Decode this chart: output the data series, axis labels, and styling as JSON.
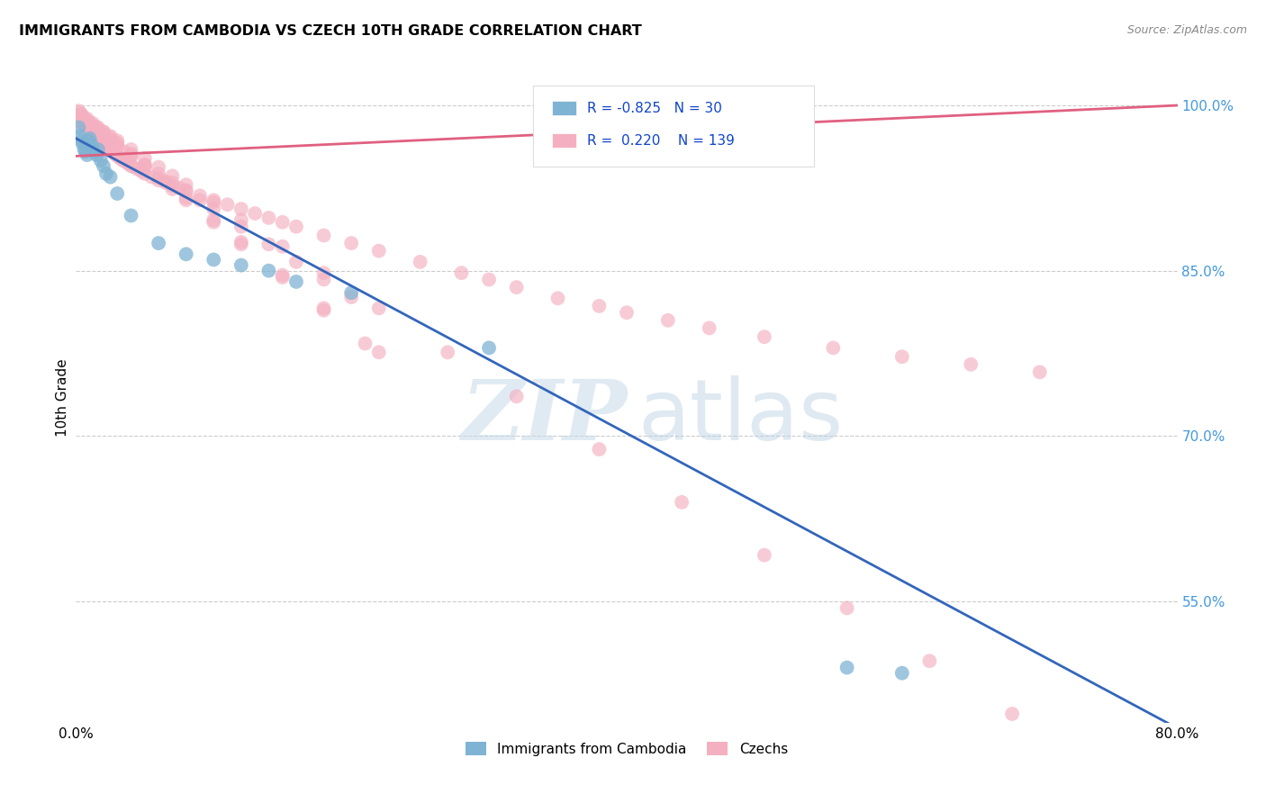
{
  "title": "IMMIGRANTS FROM CAMBODIA VS CZECH 10TH GRADE CORRELATION CHART",
  "source": "Source: ZipAtlas.com",
  "ylabel": "10th Grade",
  "y_ticks": [
    0.55,
    0.7,
    0.85,
    1.0
  ],
  "y_tick_labels": [
    "55.0%",
    "70.0%",
    "85.0%",
    "100.0%"
  ],
  "x_tick_pos": [
    0.0,
    0.2,
    0.4,
    0.6,
    0.8
  ],
  "x_tick_labels": [
    "0.0%",
    "",
    "",
    "",
    "80.0%"
  ],
  "xlim": [
    0.0,
    0.8
  ],
  "ylim": [
    0.44,
    1.03
  ],
  "watermark_zip": "ZIP",
  "watermark_atlas": "atlas",
  "cambodia_scatter_color": "#7fb3d3",
  "czech_scatter_color": "#f4b0c0",
  "cambodia_line_color": "#3366BB",
  "czech_line_color": "#E06080",
  "legend_R_cambodia": "-0.825",
  "legend_N_cambodia": "30",
  "legend_R_czech": "0.220",
  "legend_N_czech": "139",
  "legend_labels": [
    "Immigrants from Cambodia",
    "Czechs"
  ],
  "cambodia_x": [
    0.002,
    0.003,
    0.004,
    0.005,
    0.006,
    0.007,
    0.008,
    0.009,
    0.01,
    0.011,
    0.012,
    0.013,
    0.015,
    0.016,
    0.018,
    0.02,
    0.022,
    0.025,
    0.03,
    0.04,
    0.06,
    0.08,
    0.1,
    0.12,
    0.14,
    0.16,
    0.2,
    0.3,
    0.56,
    0.6
  ],
  "cambodia_y": [
    0.98,
    0.972,
    0.968,
    0.965,
    0.96,
    0.958,
    0.955,
    0.968,
    0.97,
    0.965,
    0.96,
    0.958,
    0.955,
    0.96,
    0.95,
    0.945,
    0.938,
    0.935,
    0.92,
    0.9,
    0.875,
    0.865,
    0.86,
    0.855,
    0.85,
    0.84,
    0.83,
    0.78,
    0.49,
    0.485
  ],
  "czech_x": [
    0.002,
    0.003,
    0.004,
    0.005,
    0.006,
    0.007,
    0.008,
    0.009,
    0.01,
    0.011,
    0.012,
    0.013,
    0.014,
    0.015,
    0.016,
    0.017,
    0.018,
    0.019,
    0.02,
    0.022,
    0.024,
    0.026,
    0.028,
    0.03,
    0.032,
    0.034,
    0.036,
    0.038,
    0.04,
    0.042,
    0.045,
    0.048,
    0.05,
    0.055,
    0.06,
    0.065,
    0.07,
    0.075,
    0.08,
    0.09,
    0.1,
    0.11,
    0.12,
    0.13,
    0.14,
    0.15,
    0.16,
    0.18,
    0.2,
    0.22,
    0.25,
    0.28,
    0.3,
    0.32,
    0.35,
    0.38,
    0.4,
    0.43,
    0.46,
    0.5,
    0.55,
    0.6,
    0.65,
    0.7,
    0.003,
    0.006,
    0.01,
    0.015,
    0.02,
    0.025,
    0.03,
    0.035,
    0.04,
    0.05,
    0.06,
    0.07,
    0.08,
    0.09,
    0.1,
    0.12,
    0.14,
    0.16,
    0.18,
    0.2,
    0.004,
    0.008,
    0.012,
    0.016,
    0.02,
    0.025,
    0.03,
    0.04,
    0.05,
    0.06,
    0.07,
    0.08,
    0.1,
    0.12,
    0.15,
    0.18,
    0.21,
    0.005,
    0.01,
    0.015,
    0.02,
    0.025,
    0.03,
    0.04,
    0.05,
    0.06,
    0.07,
    0.08,
    0.1,
    0.12,
    0.15,
    0.18,
    0.22,
    0.27,
    0.32,
    0.38,
    0.44,
    0.5,
    0.56,
    0.62,
    0.68,
    0.004,
    0.008,
    0.012,
    0.016,
    0.02,
    0.025,
    0.03,
    0.04,
    0.05,
    0.065,
    0.08,
    0.1,
    0.12,
    0.15,
    0.18,
    0.22
  ],
  "czech_y": [
    0.995,
    0.993,
    0.991,
    0.989,
    0.988,
    0.986,
    0.984,
    0.983,
    0.981,
    0.98,
    0.978,
    0.976,
    0.975,
    0.973,
    0.972,
    0.97,
    0.969,
    0.967,
    0.966,
    0.963,
    0.96,
    0.958,
    0.956,
    0.954,
    0.952,
    0.95,
    0.949,
    0.947,
    0.945,
    0.944,
    0.942,
    0.94,
    0.938,
    0.935,
    0.932,
    0.93,
    0.927,
    0.925,
    0.923,
    0.918,
    0.914,
    0.91,
    0.906,
    0.902,
    0.898,
    0.894,
    0.89,
    0.882,
    0.875,
    0.868,
    0.858,
    0.848,
    0.842,
    0.835,
    0.825,
    0.818,
    0.812,
    0.805,
    0.798,
    0.79,
    0.78,
    0.772,
    0.765,
    0.758,
    0.985,
    0.982,
    0.978,
    0.974,
    0.97,
    0.966,
    0.962,
    0.958,
    0.954,
    0.946,
    0.938,
    0.93,
    0.922,
    0.914,
    0.906,
    0.89,
    0.874,
    0.858,
    0.842,
    0.826,
    0.99,
    0.986,
    0.982,
    0.978,
    0.974,
    0.969,
    0.964,
    0.954,
    0.944,
    0.934,
    0.924,
    0.914,
    0.894,
    0.874,
    0.844,
    0.814,
    0.784,
    0.988,
    0.984,
    0.98,
    0.976,
    0.972,
    0.968,
    0.96,
    0.952,
    0.944,
    0.936,
    0.928,
    0.912,
    0.896,
    0.872,
    0.848,
    0.816,
    0.776,
    0.736,
    0.688,
    0.64,
    0.592,
    0.544,
    0.496,
    0.448,
    0.992,
    0.988,
    0.984,
    0.98,
    0.976,
    0.971,
    0.966,
    0.956,
    0.946,
    0.931,
    0.916,
    0.896,
    0.876,
    0.846,
    0.816,
    0.776
  ]
}
